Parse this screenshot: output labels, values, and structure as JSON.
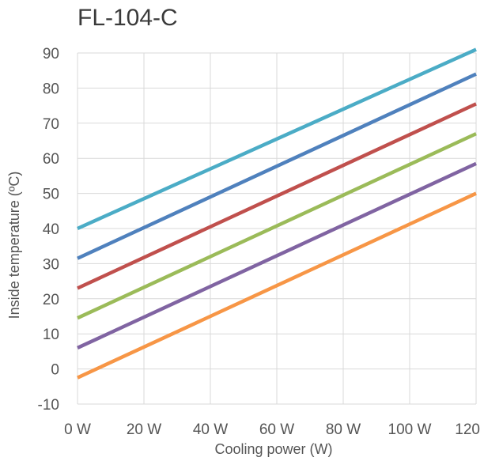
{
  "chart_data": {
    "type": "line",
    "title": "FL-104-C",
    "xlabel": "Cooling power (W)",
    "ylabel": "Inside temperature (ºC)",
    "xlim": [
      0,
      120
    ],
    "ylim": [
      -10,
      90
    ],
    "x_ticks": [
      0,
      20,
      40,
      60,
      80,
      100,
      120
    ],
    "x_tick_labels": [
      "0 W",
      "20 W",
      "40 W",
      "60 W",
      "80 W",
      "100 W",
      "120"
    ],
    "y_ticks": [
      -10,
      0,
      10,
      20,
      30,
      40,
      50,
      60,
      70,
      80,
      90
    ],
    "y_tick_labels": [
      "-10",
      "0",
      "10",
      "20",
      "30",
      "40",
      "50",
      "60",
      "70",
      "80",
      "90"
    ],
    "grid": true,
    "series": [
      {
        "color": "#4bacc6",
        "x": [
          0,
          120
        ],
        "y": [
          40,
          91
        ]
      },
      {
        "color": "#4f81bd",
        "x": [
          0,
          120
        ],
        "y": [
          31.5,
          84
        ]
      },
      {
        "color": "#c0504d",
        "x": [
          0,
          120
        ],
        "y": [
          23,
          75.5
        ]
      },
      {
        "color": "#9bbb59",
        "x": [
          0,
          120
        ],
        "y": [
          14.5,
          67
        ]
      },
      {
        "color": "#8064a2",
        "x": [
          0,
          120
        ],
        "y": [
          6,
          58.5
        ]
      },
      {
        "color": "#f79646",
        "x": [
          0,
          120
        ],
        "y": [
          -2.5,
          50
        ]
      }
    ]
  }
}
